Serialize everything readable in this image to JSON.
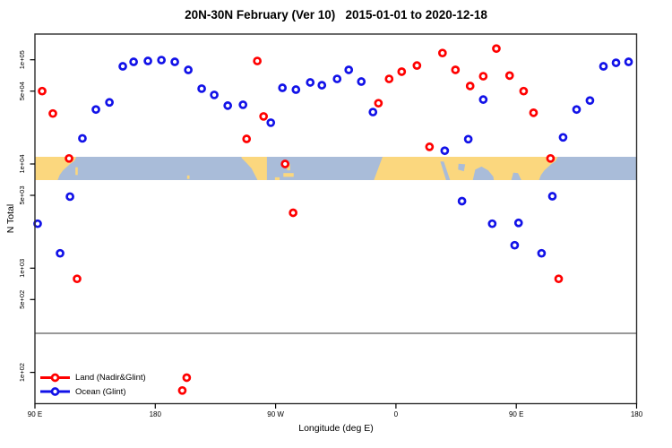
{
  "title": "20N-30N February (Ver 10)   2015-01-01 to 2020-12-18",
  "axes": {
    "x": {
      "label": "Longitude (deg E)",
      "min": 90,
      "max": 540,
      "note": "axis starts at 90E and wraps eastward around the globe 1.25 times",
      "ticks": [
        {
          "lon": 90,
          "label": "90 E"
        },
        {
          "lon": 180,
          "label": "180"
        },
        {
          "lon": 270,
          "label": "90 W"
        },
        {
          "lon": 360,
          "label": "0"
        },
        {
          "lon": 450,
          "label": "90 E"
        },
        {
          "lon": 540,
          "label": "180"
        }
      ]
    },
    "y": {
      "label": "N Total",
      "scale": "log10",
      "ticks": [
        {
          "v": 100000,
          "label": "1e+05"
        },
        {
          "v": 50000,
          "label": "5e+04"
        },
        {
          "v": 10000,
          "label": "1e+04"
        },
        {
          "v": 5000,
          "label": "5e+03"
        },
        {
          "v": 1000,
          "label": "1e+03"
        },
        {
          "v": 500,
          "label": "5e+02"
        },
        {
          "v": 100,
          "label": "1e+02"
        }
      ]
    }
  },
  "legend": {
    "items": [
      {
        "label": "Land (Nadir&Glint)",
        "color": "#ff0000"
      },
      {
        "label": "Ocean (Glint)",
        "color": "#1212e8"
      }
    ]
  },
  "colors": {
    "land_marker": "#ff0000",
    "ocean_marker": "#1212e8",
    "map_land": "#fbd77e",
    "map_ocean": "#a9bcd9",
    "reference_line": "#999999",
    "plot_border": "#2e2e2e"
  },
  "chart_data": {
    "type": "scatter",
    "title": "20N-30N February (Ver 10)   2015-01-01 to 2020-12-18",
    "xlabel": "Longitude (deg E)",
    "ylabel": "N Total",
    "x_range": [
      90,
      540
    ],
    "y_log_range": [
      50,
      177000
    ],
    "reference_line_y": 237,
    "map_band": {
      "value_center": 10000,
      "value_top": 11700,
      "value_bottom": 7100
    },
    "series": [
      {
        "name": "Land (Nadir&Glint)",
        "color": "#ff0000",
        "points": [
          [
            95.4,
            50000
          ],
          [
            103.4,
            30500
          ],
          [
            115.5,
            11300
          ],
          [
            121.5,
            790
          ],
          [
            200.2,
            67
          ],
          [
            203.5,
            89
          ],
          [
            248.3,
            17400
          ],
          [
            256.3,
            97300
          ],
          [
            261.0,
            28600
          ],
          [
            277.1,
            10000
          ],
          [
            283.1,
            3400
          ],
          [
            346.9,
            38300
          ],
          [
            354.9,
            65500
          ],
          [
            364.3,
            76900
          ],
          [
            375.7,
            88000
          ],
          [
            385.1,
            14600
          ],
          [
            394.8,
            116000
          ],
          [
            404.5,
            80000
          ],
          [
            415.5,
            56000
          ],
          [
            425.3,
            69500
          ],
          [
            435.1,
            128000
          ],
          [
            445.0,
            70500
          ],
          [
            455.5,
            50000
          ],
          [
            462.9,
            31000
          ],
          [
            475.6,
            11300
          ],
          [
            481.7,
            790
          ]
        ]
      },
      {
        "name": "Ocean (Glint)",
        "color": "#1212e8",
        "points": [
          [
            92.0,
            2670
          ],
          [
            108.8,
            1390
          ],
          [
            116.2,
            4860
          ],
          [
            125.5,
            17600
          ],
          [
            135.6,
            33300
          ],
          [
            145.7,
            39000
          ],
          [
            155.7,
            86500
          ],
          [
            163.8,
            95500
          ],
          [
            174.5,
            97400
          ],
          [
            184.6,
            99300
          ],
          [
            194.6,
            95500
          ],
          [
            204.7,
            79900
          ],
          [
            214.7,
            52800
          ],
          [
            224.1,
            46000
          ],
          [
            234.2,
            36300
          ],
          [
            245.6,
            37000
          ],
          [
            266.4,
            24900
          ],
          [
            275.1,
            53800
          ],
          [
            285.2,
            51700
          ],
          [
            295.9,
            60600
          ],
          [
            304.6,
            57000
          ],
          [
            316.0,
            65500
          ],
          [
            324.7,
            80000
          ],
          [
            334.1,
            61800
          ],
          [
            342.8,
            31500
          ],
          [
            396.5,
            13400
          ],
          [
            409.4,
            4400
          ],
          [
            414.1,
            17300
          ],
          [
            425.3,
            41500
          ],
          [
            432.0,
            2670
          ],
          [
            448.8,
            1660
          ],
          [
            451.7,
            2720
          ],
          [
            468.9,
            1390
          ],
          [
            477.0,
            4900
          ],
          [
            485.0,
            18000
          ],
          [
            495.1,
            33300
          ],
          [
            505.1,
            40600
          ],
          [
            515.2,
            86500
          ],
          [
            524.6,
            93500
          ],
          [
            534.0,
            95500
          ]
        ]
      }
    ]
  },
  "map_shapes": {
    "land": [
      {
        "name": "asia-east",
        "pts": [
          [
            90,
            0
          ],
          [
            121,
            0
          ],
          [
            119.5,
            0.18
          ],
          [
            116,
            0.32
          ],
          [
            111,
            0.58
          ],
          [
            108.5,
            0.78
          ],
          [
            107,
            1
          ],
          [
            90,
            1
          ]
        ]
      },
      {
        "name": "taiwan",
        "pts": [
          [
            120.3,
            0.45
          ],
          [
            122,
            0.45
          ],
          [
            122,
            0.78
          ],
          [
            120.3,
            0.78
          ]
        ]
      },
      {
        "name": "hawaii",
        "pts": [
          [
            203.8,
            0.8
          ],
          [
            205.6,
            0.8
          ],
          [
            205.6,
            0.95
          ],
          [
            203.8,
            0.95
          ]
        ]
      },
      {
        "name": "mexico",
        "pts": [
          [
            244.5,
            0
          ],
          [
            263.5,
            0
          ],
          [
            263.5,
            1
          ],
          [
            256.5,
            1
          ],
          [
            252,
            0.5
          ],
          [
            248,
            0.25
          ],
          [
            244.5,
            0.05
          ]
        ]
      },
      {
        "name": "yucatan",
        "pts": [
          [
            269.5,
            0.88
          ],
          [
            273,
            0.88
          ],
          [
            273,
            1
          ],
          [
            269.5,
            1
          ]
        ]
      },
      {
        "name": "cuba",
        "pts": [
          [
            275.8,
            0.7
          ],
          [
            283.5,
            0.7
          ],
          [
            283.5,
            0.86
          ],
          [
            275.8,
            0.86
          ]
        ]
      },
      {
        "name": "florida",
        "pts": [
          [
            278.6,
            0.3
          ],
          [
            280.8,
            0.3
          ],
          [
            280.8,
            0.58
          ],
          [
            278.6,
            0.58
          ]
        ]
      },
      {
        "name": "africa-to-asia",
        "pts": [
          [
            350,
            0
          ],
          [
            481,
            0
          ],
          [
            479.5,
            0.18
          ],
          [
            476,
            0.32
          ],
          [
            471,
            0.58
          ],
          [
            468.5,
            0.78
          ],
          [
            467,
            1
          ],
          [
            343.5,
            1
          ]
        ]
      }
    ],
    "water_insets": [
      {
        "name": "red-sea",
        "pts": [
          [
            393.2,
            0.2
          ],
          [
            395.8,
            0.2
          ],
          [
            400.5,
            1
          ],
          [
            397.5,
            1
          ]
        ]
      },
      {
        "name": "persian-gulf",
        "pts": [
          [
            406.8,
            0.3
          ],
          [
            411.8,
            0.32
          ],
          [
            410.8,
            0.62
          ],
          [
            406.5,
            0.55
          ]
        ]
      },
      {
        "name": "arabian-sea",
        "pts": [
          [
            417.5,
            1
          ],
          [
            419.3,
            0.55
          ],
          [
            424,
            0.42
          ],
          [
            429,
            0.58
          ],
          [
            432.8,
            0.85
          ],
          [
            433.2,
            1
          ]
        ]
      },
      {
        "name": "bay-of-bengal",
        "pts": [
          [
            446.3,
            1
          ],
          [
            447.8,
            0.68
          ],
          [
            451.3,
            0.7
          ],
          [
            453.8,
            1
          ]
        ]
      }
    ]
  }
}
